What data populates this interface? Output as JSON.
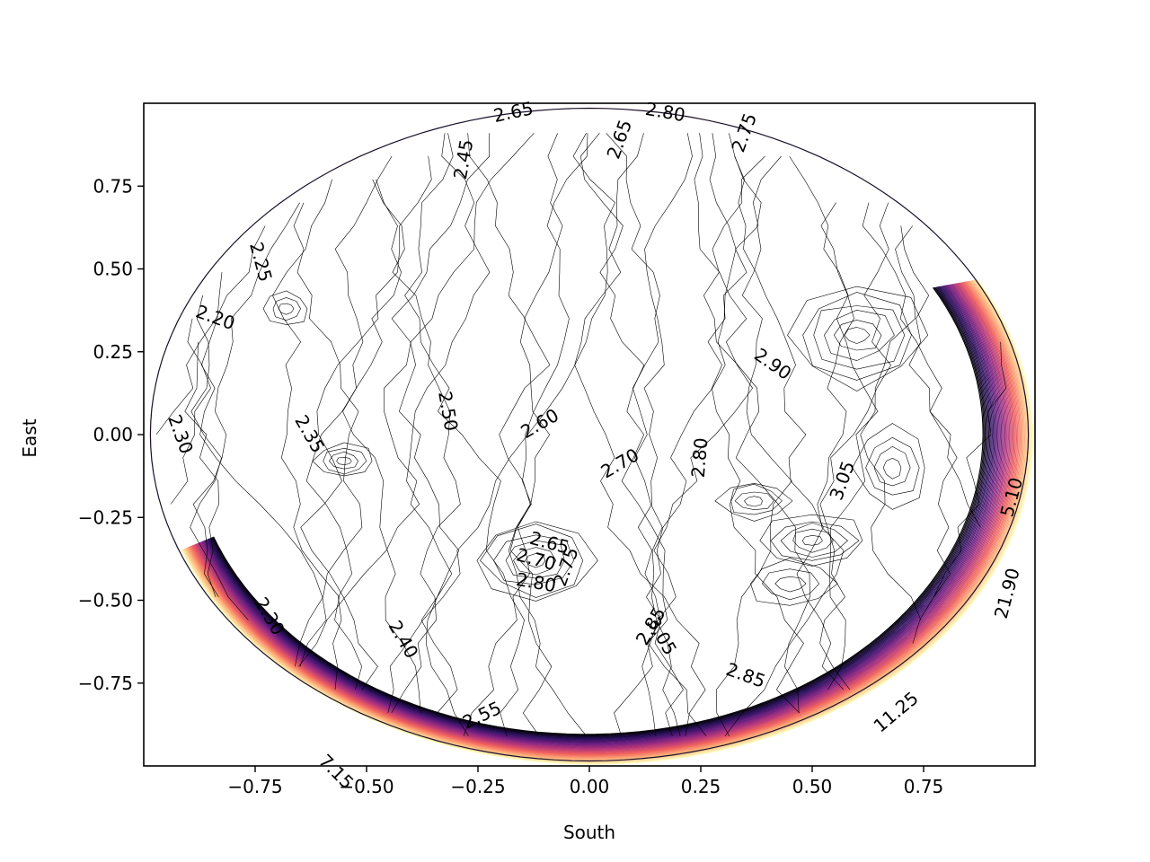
{
  "chart_data": {
    "type": "contour",
    "title": "",
    "xlabel": "South",
    "ylabel": "East",
    "xlim": [
      -1.0,
      1.0
    ],
    "ylim": [
      -1.0,
      1.0
    ],
    "grid": false,
    "colormap": "magma",
    "x_ticks": [
      {
        "value": -0.75,
        "label": "−0.75"
      },
      {
        "value": -0.5,
        "label": "−0.50"
      },
      {
        "value": -0.25,
        "label": "−0.25"
      },
      {
        "value": 0.0,
        "label": "0.00"
      },
      {
        "value": 0.25,
        "label": "0.25"
      },
      {
        "value": 0.5,
        "label": "0.50"
      },
      {
        "value": 0.75,
        "label": "0.75"
      }
    ],
    "y_ticks": [
      {
        "value": 0.75,
        "label": "0.75"
      },
      {
        "value": 0.5,
        "label": "0.50"
      },
      {
        "value": 0.25,
        "label": "0.25"
      },
      {
        "value": 0.0,
        "label": "0.00"
      },
      {
        "value": -0.25,
        "label": "−0.25"
      },
      {
        "value": -0.5,
        "label": "−0.50"
      },
      {
        "value": -0.75,
        "label": "−0.75"
      }
    ],
    "contour_labels": [
      {
        "text": "2.65",
        "x": -0.17,
        "y": 0.97,
        "angle": -12
      },
      {
        "text": "2.80",
        "x": 0.17,
        "y": 0.97,
        "angle": 10
      },
      {
        "text": "2.75",
        "x": 0.35,
        "y": 0.91,
        "angle": -70
      },
      {
        "text": "2.65",
        "x": 0.07,
        "y": 0.89,
        "angle": -70
      },
      {
        "text": "2.45",
        "x": -0.28,
        "y": 0.83,
        "angle": -80
      },
      {
        "text": "2.25",
        "x": -0.74,
        "y": 0.52,
        "angle": 75
      },
      {
        "text": "2.20",
        "x": -0.84,
        "y": 0.35,
        "angle": 20
      },
      {
        "text": "2.90",
        "x": 0.41,
        "y": 0.21,
        "angle": 35
      },
      {
        "text": "2.50",
        "x": -0.32,
        "y": 0.07,
        "angle": 80
      },
      {
        "text": "2.60",
        "x": -0.11,
        "y": 0.03,
        "angle": -30
      },
      {
        "text": "2.35",
        "x": -0.63,
        "y": 0.0,
        "angle": 60
      },
      {
        "text": "2.30",
        "x": -0.92,
        "y": 0.0,
        "angle": 70
      },
      {
        "text": "2.80",
        "x": 0.25,
        "y": -0.07,
        "angle": -85
      },
      {
        "text": "2.70",
        "x": 0.07,
        "y": -0.09,
        "angle": -30
      },
      {
        "text": "3.05",
        "x": 0.57,
        "y": -0.14,
        "angle": -70
      },
      {
        "text": "5.10",
        "x": 0.95,
        "y": -0.19,
        "angle": -75
      },
      {
        "text": "2.65",
        "x": -0.09,
        "y": -0.33,
        "angle": 15
      },
      {
        "text": "2.70",
        "x": -0.12,
        "y": -0.38,
        "angle": 15
      },
      {
        "text": "2.75",
        "x": -0.05,
        "y": -0.4,
        "angle": -70
      },
      {
        "text": "2.80",
        "x": -0.12,
        "y": -0.45,
        "angle": 10
      },
      {
        "text": "21.90",
        "x": 0.94,
        "y": -0.48,
        "angle": -75
      },
      {
        "text": "2.30",
        "x": -0.72,
        "y": -0.55,
        "angle": 60
      },
      {
        "text": "2.85",
        "x": 0.14,
        "y": -0.58,
        "angle": -60
      },
      {
        "text": "3.05",
        "x": 0.16,
        "y": -0.61,
        "angle": 60
      },
      {
        "text": "2.40",
        "x": -0.42,
        "y": -0.62,
        "angle": 60
      },
      {
        "text": "2.85",
        "x": 0.35,
        "y": -0.73,
        "angle": 20
      },
      {
        "text": "11.25",
        "x": 0.69,
        "y": -0.84,
        "angle": -40
      },
      {
        "text": "2.55",
        "x": -0.24,
        "y": -0.85,
        "angle": -25
      },
      {
        "text": "7.15",
        "x": -0.57,
        "y": -1.02,
        "angle": 45
      }
    ]
  }
}
